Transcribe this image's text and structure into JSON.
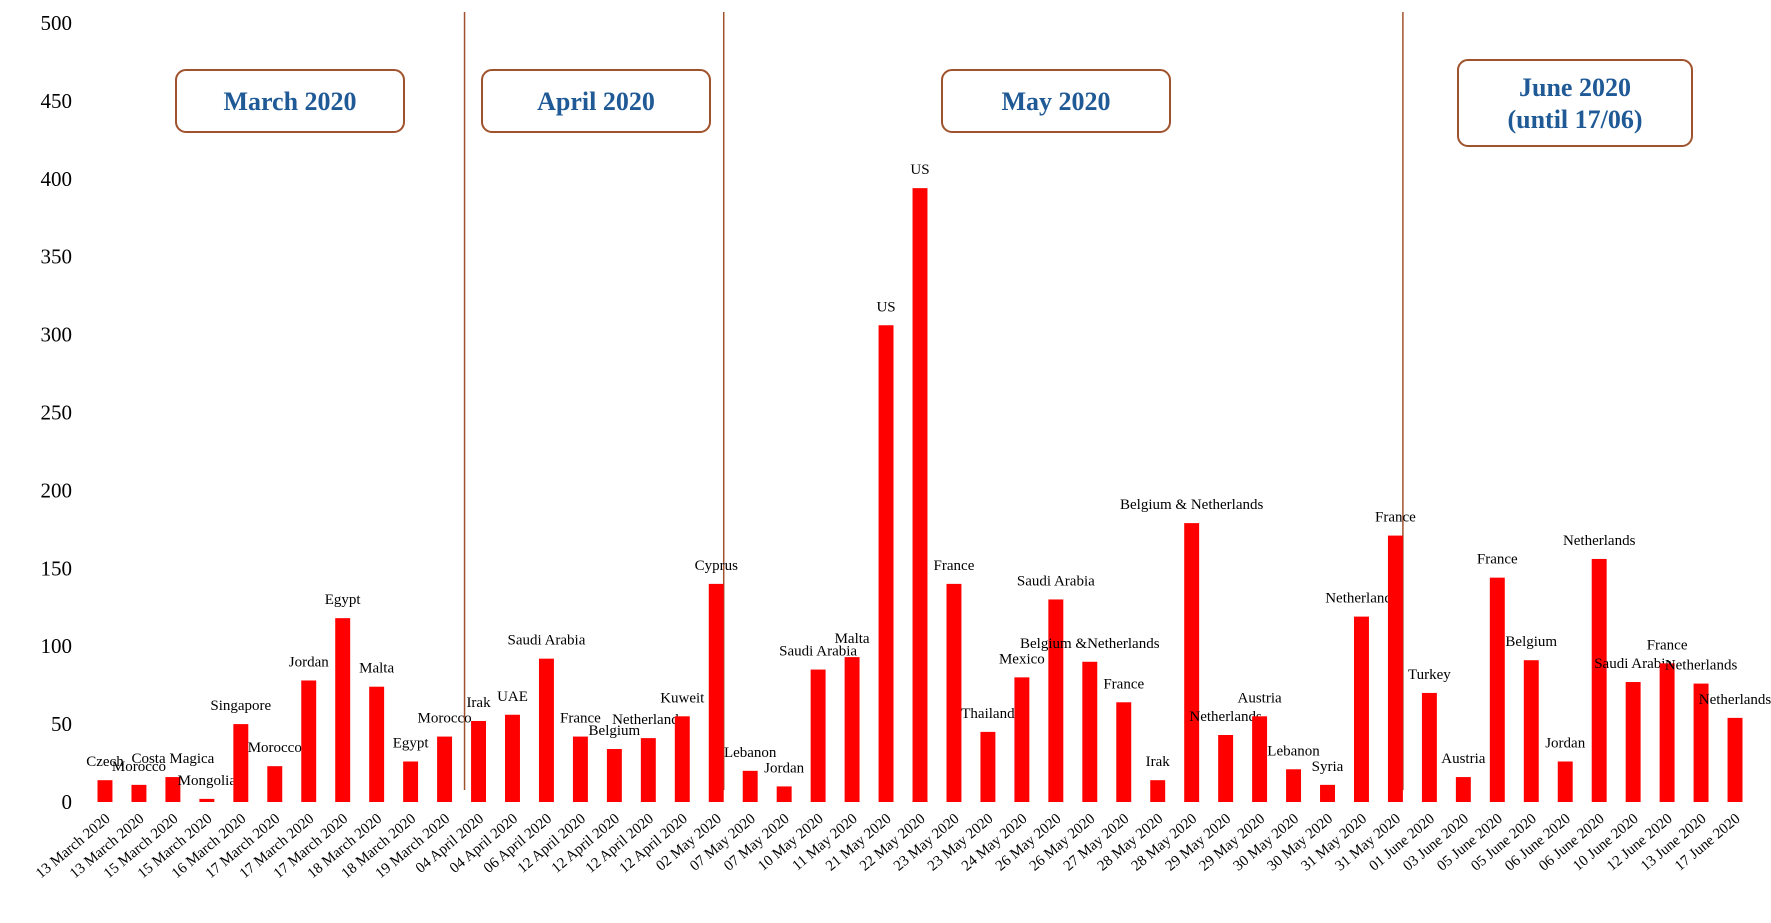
{
  "chart_data": {
    "type": "bar",
    "color": "#ff0000",
    "categories": [
      "13 March 2020",
      "13 March 2020",
      "15 March 2020",
      "15 March 2020",
      "16 March 2020",
      "17 March 2020",
      "17 March 2020",
      "17 March 2020",
      "18 March 2020",
      "18 March 2020",
      "19 March 2020",
      "04 April 2020",
      "04 April 2020",
      "06 April 2020",
      "12 April 2020",
      "12 April 2020",
      "12 April 2020",
      "12 April 2020",
      "02 May 2020",
      "07 May 2020",
      "07 May 2020",
      "10 May 2020",
      "11 May 2020",
      "21 May 2020",
      "22 May 2020",
      "23 May 2020",
      "23 May 2020",
      "24 May 2020",
      "26 May 2020",
      "26 May 2020",
      "27 May 2020",
      "28 May 2020",
      "28 May 2020",
      "29 May 2020",
      "29 May 2020",
      "30 May 2020",
      "30 May 2020",
      "31 May 2020",
      "31 May 2020",
      "01 June 2020",
      "03 June 2020",
      "05 June 2020",
      "05 June 2020",
      "06 June 2020",
      "06 June 2020",
      "10 June 2020",
      "12 June 2020",
      "13 June 2020",
      "17 June 2020"
    ],
    "values": [
      14,
      11,
      16,
      2,
      50,
      23,
      78,
      118,
      74,
      26,
      42,
      52,
      56,
      92,
      42,
      34,
      41,
      55,
      140,
      20,
      10,
      85,
      93,
      306,
      394,
      140,
      45,
      80,
      130,
      90,
      64,
      14,
      179,
      43,
      55,
      21,
      11,
      119,
      171,
      70,
      16,
      144,
      91,
      26,
      156,
      77,
      89,
      76,
      54
    ],
    "countries": [
      "Czech",
      "Morocco",
      "Costa Magica",
      "Mongolia",
      "Singapore",
      "Morocco",
      "Jordan",
      "Egypt",
      "Malta",
      "Egypt",
      "Morocco",
      "Irak",
      "UAE",
      "Saudi Arabia",
      "France",
      "Belgium",
      "Netherlands",
      "Kuweit",
      "Cyprus",
      "Lebanon",
      "Jordan",
      "Saudi Arabia",
      "Malta",
      "US",
      "US",
      "France",
      "Thailand",
      "Mexico",
      "Saudi Arabia",
      "Belgium &Netherlands",
      "France",
      "Irak",
      "Belgium & Netherlands",
      "Netherlands",
      "Austria",
      "Lebanon",
      "Syria",
      "Netherlands",
      "France",
      "Turkey",
      "Austria",
      "France",
      "Belgium",
      "Jordan",
      "Netherlands",
      "Saudi Arabia",
      "France",
      "Netherlands",
      "Netherlands"
    ],
    "annotations": [
      {
        "lines": [
          "March 2020"
        ]
      },
      {
        "lines": [
          "April 2020"
        ]
      },
      {
        "lines": [
          "May 2020"
        ]
      },
      {
        "lines": [
          "June 2020",
          "(until 17/06)"
        ]
      }
    ],
    "ylim": [
      0,
      500
    ],
    "yticks": [
      0,
      50,
      100,
      150,
      200,
      250,
      300,
      350,
      400,
      450,
      500
    ],
    "grid": false
  }
}
